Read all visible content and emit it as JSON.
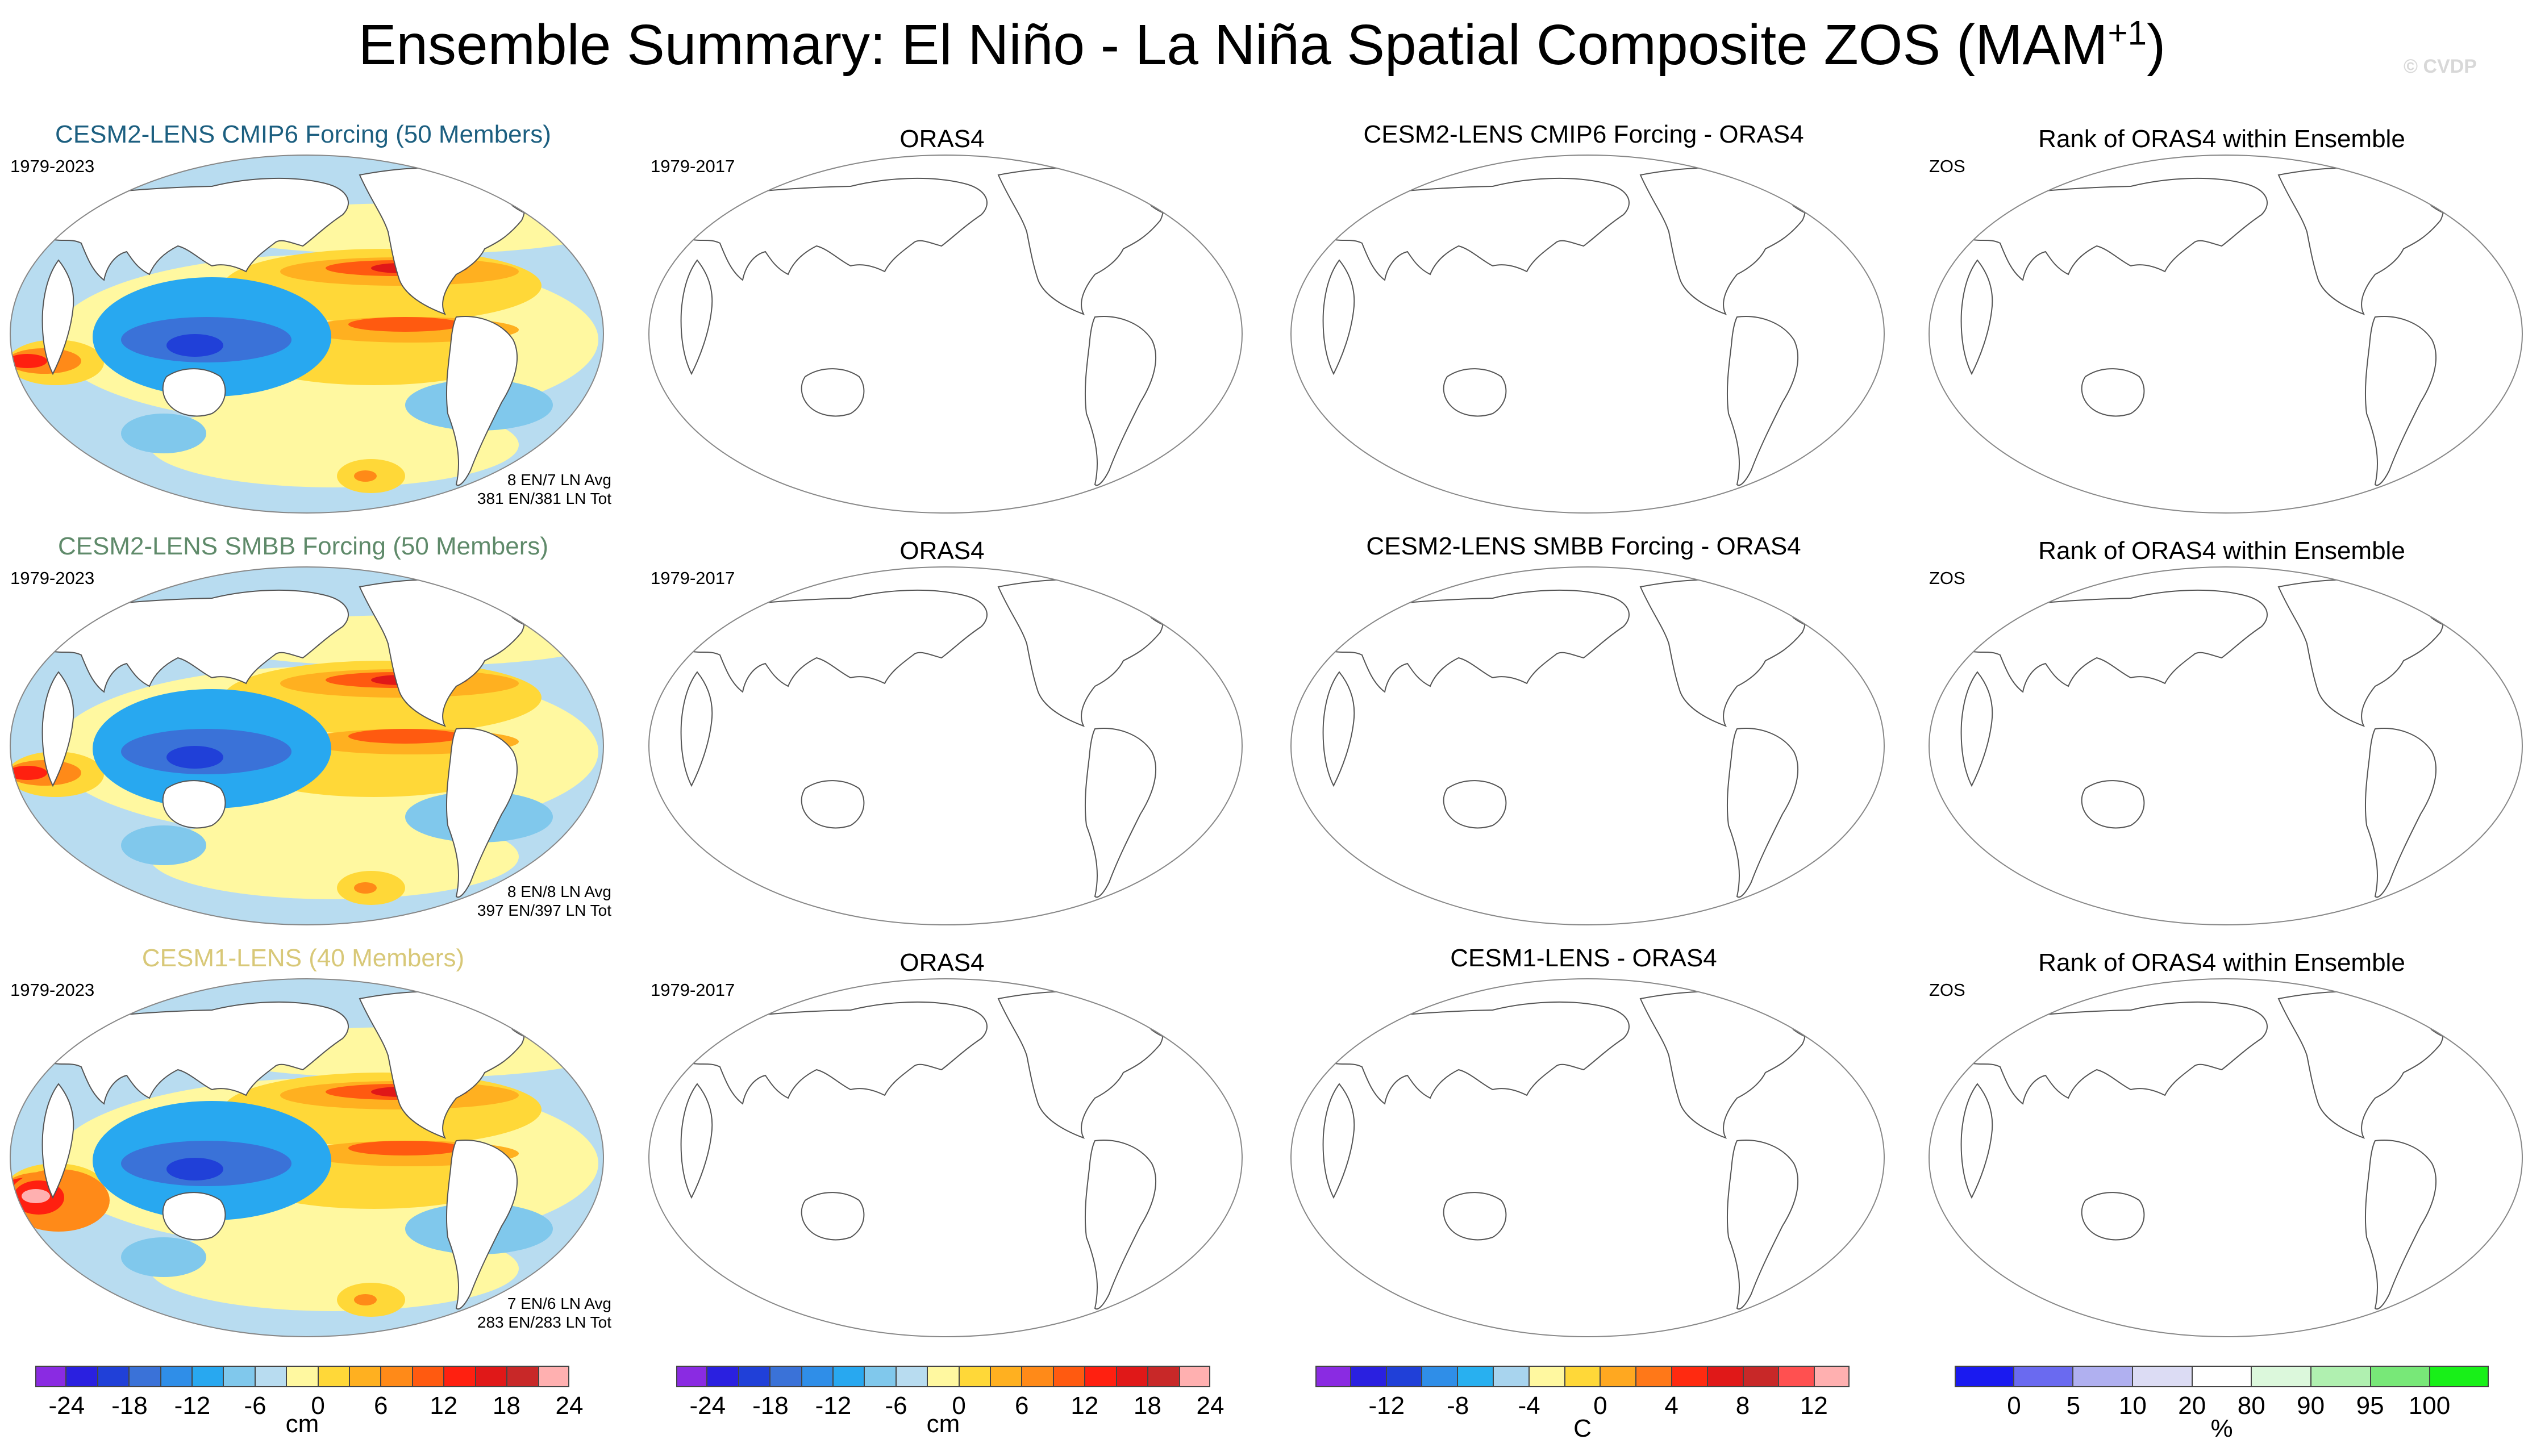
{
  "title": "Ensemble Summary: El Niño - La Niña Spatial Composite ZOS (MAM",
  "title_sup": "+1",
  "title_close": ")",
  "watermark": "© CVDP",
  "rows": [
    {
      "ensemble_title": "CESM2-LENS CMIP6 Forcing (50 Members)",
      "ensemble_color": "#1c5f80",
      "period": "1979-2023",
      "stats_avg": "8 EN/7 LN Avg",
      "stats_tot": "381 EN/381 LN Tot",
      "obs_title": "ORAS4",
      "obs_period": "1979-2017",
      "diff_title": "CESM2-LENS CMIP6 Forcing - ORAS4",
      "rank_title": "Rank of ORAS4 within Ensemble",
      "rank_var": "ZOS"
    },
    {
      "ensemble_title": "CESM2-LENS SMBB Forcing (50 Members)",
      "ensemble_color": "#5f8a6a",
      "period": "1979-2023",
      "stats_avg": "8 EN/8 LN Avg",
      "stats_tot": "397 EN/397 LN Tot",
      "obs_title": "ORAS4",
      "obs_period": "1979-2017",
      "diff_title": "CESM2-LENS SMBB Forcing - ORAS4",
      "rank_title": "Rank of ORAS4 within Ensemble",
      "rank_var": "ZOS"
    },
    {
      "ensemble_title": "CESM1-LENS (40 Members)",
      "ensemble_color": "#d8c878",
      "period": "1979-2023",
      "stats_avg": "7 EN/6 LN Avg",
      "stats_tot": "283 EN/283 LN Tot",
      "obs_title": "ORAS4",
      "obs_period": "1979-2017",
      "diff_title": "CESM1-LENS - ORAS4",
      "rank_title": "Rank of ORAS4 within Ensemble",
      "rank_var": "ZOS"
    }
  ],
  "colorbars": [
    {
      "unit": "cm",
      "ticks": [
        "-24",
        "-18",
        "-12",
        "-6",
        "0",
        "6",
        "12",
        "18",
        "24"
      ],
      "colors": [
        "#8a2be2",
        "#2a20e0",
        "#2040d8",
        "#3a72d8",
        "#2f8ee8",
        "#28a8f0",
        "#80c8ec",
        "#b8dcf0",
        "#fff8a0",
        "#ffd838",
        "#ffb020",
        "#ff8a18",
        "#ff5a10",
        "#ff2010",
        "#e01818",
        "#c82828",
        "#ffb0b0"
      ]
    },
    {
      "unit": "cm",
      "ticks": [
        "-24",
        "-18",
        "-12",
        "-6",
        "0",
        "6",
        "12",
        "18",
        "24"
      ],
      "colors": [
        "#8a2be2",
        "#2a20e0",
        "#2040d8",
        "#3a72d8",
        "#2f8ee8",
        "#28a8f0",
        "#80c8ec",
        "#b8dcf0",
        "#fff8a0",
        "#ffd838",
        "#ffb020",
        "#ff8a18",
        "#ff5a10",
        "#ff2010",
        "#e01818",
        "#c82828",
        "#ffb0b0"
      ]
    },
    {
      "unit": "C",
      "ticks": [
        "-12",
        "-8",
        "-4",
        "0",
        "4",
        "8",
        "12"
      ],
      "colors": [
        "#8a2be2",
        "#2a20e0",
        "#2040d8",
        "#2f8ee8",
        "#28b0f0",
        "#a8d4ee",
        "#fff8a0",
        "#ffd838",
        "#ffa820",
        "#ff7818",
        "#ff2a10",
        "#e01818",
        "#c82828",
        "#ff5050",
        "#ffb0b0"
      ]
    },
    {
      "unit": "%",
      "ticks": [
        "0",
        "5",
        "10",
        "20",
        "80",
        "90",
        "95",
        "100"
      ],
      "colors": [
        "#1a1af0",
        "#6a6af0",
        "#b0b0f0",
        "#dcdcf4",
        "#ffffff",
        "#dcf8dc",
        "#b0f0b0",
        "#78e878",
        "#18f018"
      ]
    }
  ]
}
